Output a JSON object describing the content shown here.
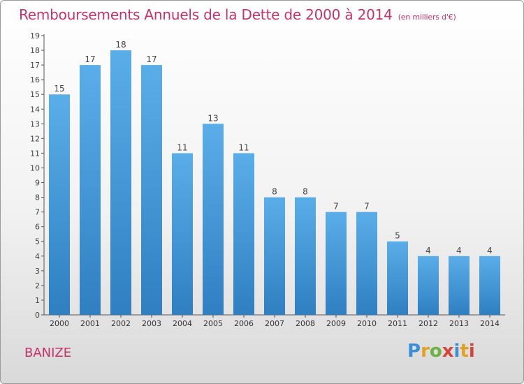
{
  "header": {
    "title": "Remboursements Annuels de la Dette de 2000 à 2014",
    "unit": "(en milliers d'€)"
  },
  "footer": {
    "commune": "BANIZE",
    "logo": [
      "P",
      "r",
      "o",
      "x",
      "i",
      "t",
      "i"
    ]
  },
  "colors": {
    "bar_top": "#5aaee8",
    "bar_bottom": "#2f7fc1",
    "title": "#c8326a"
  },
  "chart_data": {
    "type": "bar",
    "title": "Remboursements Annuels de la Dette de 2000 à 2014",
    "subtitle": "(en milliers d'€)",
    "categories": [
      "2000",
      "2001",
      "2002",
      "2003",
      "2004",
      "2005",
      "2006",
      "2007",
      "2008",
      "2009",
      "2010",
      "2011",
      "2012",
      "2013",
      "2014"
    ],
    "values": [
      15,
      17,
      18,
      17,
      11,
      13,
      11,
      8,
      8,
      7,
      7,
      5,
      4,
      4,
      4
    ],
    "ylim": [
      0,
      19
    ],
    "yticks": [
      0,
      1,
      2,
      3,
      4,
      5,
      6,
      7,
      8,
      9,
      10,
      11,
      12,
      13,
      14,
      15,
      16,
      17,
      18,
      19
    ],
    "grid": false,
    "legend": "none"
  }
}
